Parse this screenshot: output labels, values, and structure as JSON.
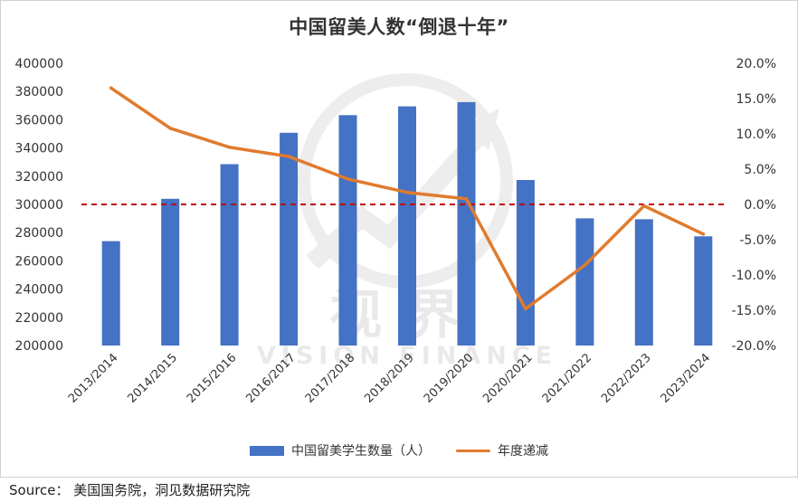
{
  "chart_data": {
    "type": "bar",
    "title": "中国留美人数“倒退十年”",
    "categories": [
      "2013/2014",
      "2014/2015",
      "2015/2016",
      "2016/2017",
      "2017/2018",
      "2018/2019",
      "2019/2020",
      "2020/2021",
      "2021/2022",
      "2022/2023",
      "2023/2024"
    ],
    "series": [
      {
        "name": "中国留美学生数量（人）",
        "type": "bar",
        "axis": "left",
        "values": [
          274000,
          304000,
          328500,
          350800,
          363300,
          369500,
          372500,
          317300,
          290100,
          289500,
          277400
        ]
      },
      {
        "name": "年度递减",
        "type": "line",
        "axis": "right",
        "values": [
          16.5,
          10.8,
          8.1,
          6.8,
          3.6,
          1.7,
          0.8,
          -14.8,
          -8.6,
          -0.2,
          -4.2
        ]
      }
    ],
    "left_axis": {
      "min": 200000,
      "max": 400000,
      "step": 20000,
      "ticks": [
        "200000",
        "220000",
        "240000",
        "260000",
        "280000",
        "300000",
        "320000",
        "340000",
        "360000",
        "380000",
        "400000"
      ]
    },
    "right_axis": {
      "min": -20,
      "max": 20,
      "step": 5,
      "ticks": [
        "-20.0%",
        "-15.0%",
        "-10.0%",
        "-5.0%",
        "0.0%",
        "5.0%",
        "10.0%",
        "15.0%",
        "20.0%"
      ]
    },
    "reference_line": {
      "axis": "right",
      "value": 0,
      "style": "dashed",
      "color": "#c00000"
    },
    "grid": false,
    "legend_position": "bottom",
    "colors": {
      "bar": "#4472c4",
      "line": "#e07b2e"
    }
  },
  "watermark": {
    "line1": "视界",
    "line2": "VISION FINANCE"
  },
  "source": "Source：  美国国务院，洞见数据研究院"
}
